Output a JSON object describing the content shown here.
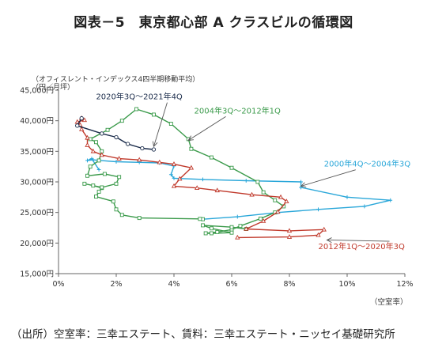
{
  "page": {
    "title": "図表－5　東京都心部 A クラスビルの循環図",
    "source": "（出所）空室率：三幸エステート、賃料：三幸エステート・ニッセイ基礎研究所"
  },
  "chart_data": {
    "type": "line",
    "subtitle": "（オフィスレント・インデックス4四半期移動平均）",
    "ylabel": "（円／月坪）",
    "xlabel": "（空室率）",
    "xlim": [
      0,
      12
    ],
    "ylim": [
      15000,
      45000
    ],
    "xticks": [
      "0%",
      "2%",
      "4%",
      "6%",
      "8%",
      "10%",
      "12%"
    ],
    "yticks": [
      "15,000円",
      "20,000円",
      "25,000円",
      "30,000円",
      "35,000円",
      "40,000円",
      "45,000円"
    ],
    "series": [
      {
        "name": "2000年4Q～2004年3Q",
        "color": "#2aa7d9",
        "marker": "plus",
        "annotation": {
          "text": "2000年4Q～2004年3Q",
          "at": [
            9.2,
            32500
          ],
          "arrow_to": [
            8.4,
            29300
          ]
        },
        "points": [
          [
            1.4,
            32000
          ],
          [
            1.15,
            33800
          ],
          [
            1.0,
            33500
          ],
          [
            1.2,
            33600
          ],
          [
            2.0,
            33300
          ],
          [
            2.8,
            33200
          ],
          [
            3.5,
            33100
          ],
          [
            4.0,
            32600
          ],
          [
            3.9,
            31200
          ],
          [
            4.0,
            30600
          ],
          [
            5.0,
            30400
          ],
          [
            6.5,
            30200
          ],
          [
            8.4,
            30000
          ],
          [
            8.4,
            29100
          ],
          [
            10.0,
            27500
          ],
          [
            11.5,
            27000
          ],
          [
            10.6,
            26000
          ],
          [
            9.0,
            25500
          ],
          [
            7.6,
            25000
          ],
          [
            6.2,
            24300
          ],
          [
            5.0,
            23900
          ]
        ]
      },
      {
        "name": "2004年3Q～2012年1Q",
        "color": "#3a9a4a",
        "marker": "square",
        "annotation": {
          "text": "2004年3Q～2012年1Q",
          "at": [
            4.7,
            41200
          ],
          "arrow_to": [
            4.5,
            36800
          ]
        },
        "points": [
          [
            5.0,
            23900
          ],
          [
            4.9,
            23950
          ],
          [
            2.8,
            24100
          ],
          [
            2.2,
            24600
          ],
          [
            2.0,
            25500
          ],
          [
            1.9,
            26800
          ],
          [
            1.3,
            27600
          ],
          [
            1.4,
            28400
          ],
          [
            1.5,
            29000
          ],
          [
            1.2,
            29400
          ],
          [
            0.9,
            29700
          ],
          [
            1.5,
            29100
          ],
          [
            2.0,
            29700
          ],
          [
            2.1,
            30800
          ],
          [
            1.6,
            31300
          ],
          [
            1.0,
            31000
          ],
          [
            1.1,
            32500
          ],
          [
            1.4,
            33500
          ],
          [
            1.5,
            35000
          ],
          [
            1.3,
            36500
          ],
          [
            1.1,
            37000
          ],
          [
            1.7,
            38500
          ],
          [
            2.2,
            40000
          ],
          [
            2.7,
            41900
          ],
          [
            3.3,
            41000
          ],
          [
            3.9,
            39500
          ],
          [
            4.5,
            37000
          ],
          [
            4.6,
            35400
          ],
          [
            5.3,
            34000
          ],
          [
            6.0,
            32300
          ],
          [
            6.9,
            30000
          ],
          [
            7.1,
            28300
          ],
          [
            7.5,
            27000
          ],
          [
            7.8,
            26000
          ],
          [
            7.5,
            25000
          ],
          [
            7.0,
            24000
          ],
          [
            6.3,
            22800
          ],
          [
            6.0,
            22200
          ],
          [
            5.5,
            21800
          ],
          [
            5.1,
            21600
          ],
          [
            5.3,
            21600
          ],
          [
            6.0,
            21700
          ],
          [
            5.3,
            22400
          ],
          [
            5.0,
            22900
          ],
          [
            6.0,
            22600
          ],
          [
            6.5,
            22300
          ]
        ]
      },
      {
        "name": "2012年1Q～2020年3Q",
        "color": "#c0392b",
        "marker": "triangle",
        "annotation": {
          "text": "2012年1Q～2020年3Q",
          "at": [
            9.0,
            19000
          ],
          "arrow_to": [
            9.3,
            20500
          ]
        },
        "points": [
          [
            6.2,
            20900
          ],
          [
            8.0,
            21000
          ],
          [
            9.0,
            21300
          ],
          [
            9.2,
            22200
          ],
          [
            8.0,
            22000
          ],
          [
            6.5,
            22300
          ],
          [
            7.1,
            23600
          ],
          [
            7.6,
            25100
          ],
          [
            7.9,
            26800
          ],
          [
            7.7,
            27500
          ],
          [
            6.7,
            27900
          ],
          [
            5.5,
            28600
          ],
          [
            4.8,
            29000
          ],
          [
            4.0,
            29300
          ],
          [
            4.2,
            30500
          ],
          [
            4.6,
            32300
          ],
          [
            4.0,
            32900
          ],
          [
            3.5,
            33200
          ],
          [
            2.8,
            33600
          ],
          [
            2.1,
            33800
          ],
          [
            1.5,
            34400
          ],
          [
            1.2,
            35000
          ],
          [
            1.0,
            36000
          ],
          [
            1.0,
            37200
          ],
          [
            0.8,
            38600
          ],
          [
            0.75,
            39300
          ],
          [
            0.65,
            39800
          ],
          [
            0.9,
            40100
          ],
          [
            0.8,
            40400
          ]
        ]
      },
      {
        "name": "2020年3Q～2021年4Q",
        "color": "#1a2b4a",
        "marker": "circle",
        "annotation": {
          "text": "2020年3Q～2021年4Q",
          "at": [
            1.3,
            43500
          ],
          "arrow_to": [
            3.3,
            35800
          ]
        },
        "points": [
          [
            0.8,
            40400
          ],
          [
            0.65,
            39200
          ],
          [
            1.5,
            37900
          ],
          [
            2.0,
            37300
          ],
          [
            2.4,
            36200
          ],
          [
            2.9,
            35500
          ],
          [
            3.3,
            35300
          ]
        ]
      }
    ]
  }
}
